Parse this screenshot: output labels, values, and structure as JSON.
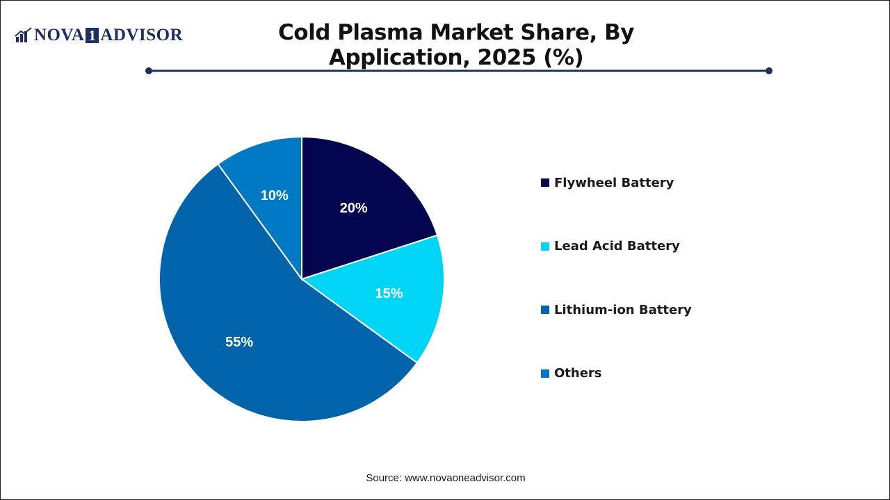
{
  "brand": {
    "logo_left": "NOVA",
    "logo_box": "1",
    "logo_right": "ADVISOR",
    "color": "#1e2e63"
  },
  "chart_data": {
    "type": "pie",
    "title": "Cold Plasma Market Share, By Application, 2025 (%)",
    "categories": [
      "Flywheel Battery",
      "Lead Acid Battery",
      "Lithium-ion Battery",
      "Others"
    ],
    "values": [
      20,
      15,
      55,
      10
    ],
    "data_labels": [
      "20%",
      "15%",
      "55%",
      "10%"
    ],
    "colors": [
      "#03044e",
      "#00d5f5",
      "#0164aa",
      "#0079c5"
    ],
    "legend_placement": "right",
    "start_angle": "12 o'clock",
    "direction": "clockwise"
  },
  "source": "Source: www.novaoneadvisor.com"
}
